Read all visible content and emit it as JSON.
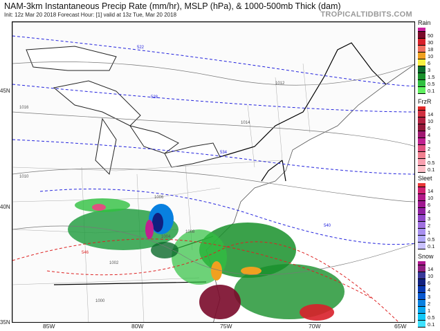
{
  "header": {
    "title": "NAM-3km Instantaneous Precip Rate (mm/hr), MSLP (hPa), & 1000-500mb Thick (dam)",
    "subtitle": "Init: 12z Mar 20 2018   Forecast Hour: [1]   valid at 13z Tue, Mar 20 2018",
    "brand": "TROPICALTIDBITS.COM"
  },
  "axes": {
    "lat_labels": [
      "45N",
      "40N",
      "35N"
    ],
    "lon_labels": [
      "85W",
      "80W",
      "75W",
      "70W",
      "65W"
    ]
  },
  "contour_labels": {
    "isobars": [
      "1016",
      "1014",
      "1012",
      "1010",
      "1008",
      "1006",
      "1004",
      "1002",
      "1000"
    ],
    "thickness": [
      "522",
      "528",
      "534",
      "540",
      "546"
    ]
  },
  "legends": [
    {
      "title": "Rain",
      "colors": [
        "#c81e9c",
        "#7a0a2a",
        "#d8202a",
        "#f07060",
        "#f0a020",
        "#f8f040",
        "#0a6a2a",
        "#18902a",
        "#30c040",
        "#60f060"
      ],
      "labels": [
        "50",
        "30",
        "18",
        "10",
        "6",
        "3",
        "1.5",
        "0.5",
        "0.1"
      ]
    },
    {
      "title": "FrzR",
      "colors": [
        "#e02828",
        "#d03040",
        "#b02040",
        "#901838",
        "#a01870",
        "#c02090",
        "#e05080",
        "#f08090",
        "#f8a0b0",
        "#fcc0c8"
      ],
      "labels": [
        "14",
        "10",
        "6",
        "4",
        "3",
        "2",
        "1",
        "0.5",
        "0.1"
      ]
    },
    {
      "title": "Sleet",
      "colors": [
        "#e83838",
        "#d02070",
        "#b01888",
        "#a01890",
        "#9020a0",
        "#9048c8",
        "#a070e0",
        "#a890f0",
        "#b0a8f8",
        "#c8c0fc"
      ],
      "labels": [
        "14",
        "10",
        "6",
        "4",
        "3",
        "2",
        "1",
        "0.5",
        "0.1"
      ]
    },
    {
      "title": "Snow",
      "colors": [
        "#b01890",
        "#902080",
        "#383898",
        "#102080",
        "#0838b0",
        "#0858d0",
        "#0880e0",
        "#08a8f0",
        "#10c8f8",
        "#40e0fc"
      ],
      "labels": [
        "14",
        "10",
        "6",
        "4",
        "3",
        "2",
        "1",
        "0.5",
        "0.1"
      ]
    }
  ],
  "colors": {
    "isobar": "#777777",
    "thickness_cold": "#2222dd",
    "thickness_warm": "#dd2222",
    "borders": "#000000"
  }
}
